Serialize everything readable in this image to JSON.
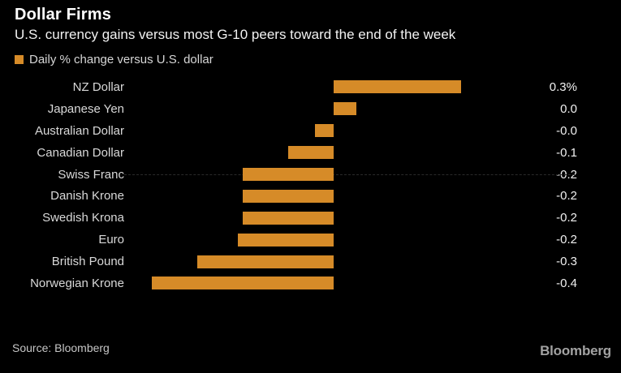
{
  "header": {
    "title": "Dollar Firms",
    "subtitle": "U.S. currency gains versus most G-10 peers toward the end of the week"
  },
  "legend": {
    "label": "Daily % change versus U.S. dollar"
  },
  "chart_data": {
    "type": "bar",
    "orientation": "horizontal",
    "title": "Dollar Firms",
    "subtitle": "U.S. currency gains versus most G-10 peers toward the end of the week",
    "xlabel": "Daily % change versus U.S. dollar",
    "categories": [
      "NZ Dollar",
      "Japanese Yen",
      "Australian Dollar",
      "Canadian Dollar",
      "Swiss Franc",
      "Danish Krone",
      "Swedish Krona",
      "Euro",
      "British Pound",
      "Norwegian Krone"
    ],
    "values": [
      0.28,
      0.05,
      -0.04,
      -0.1,
      -0.2,
      -0.2,
      -0.2,
      -0.21,
      -0.3,
      -0.4
    ],
    "value_labels": [
      "0.3%",
      "0.0",
      "-0.0",
      "-0.1",
      "-0.2",
      "-0.2",
      "-0.2",
      "-0.2",
      "-0.3",
      "-0.4"
    ],
    "xlim": [
      -0.46,
      0.45
    ],
    "grid": false,
    "legend_position": "top-left",
    "bar_color": "#d68b28"
  },
  "footer": {
    "source": "Source: Bloomberg",
    "logo": "Bloomberg"
  },
  "colors": {
    "background": "#000000",
    "accent_orange": "#d68b28",
    "title_text": "#ffffff",
    "subtitle_text": "#f2f2f2",
    "legend_text": "#d6d6d6",
    "label_text": "#d9d9d9",
    "value_text": "#f0f0f0",
    "source_text": "#c6c6c6",
    "logo_text": "#a2a2a2"
  }
}
